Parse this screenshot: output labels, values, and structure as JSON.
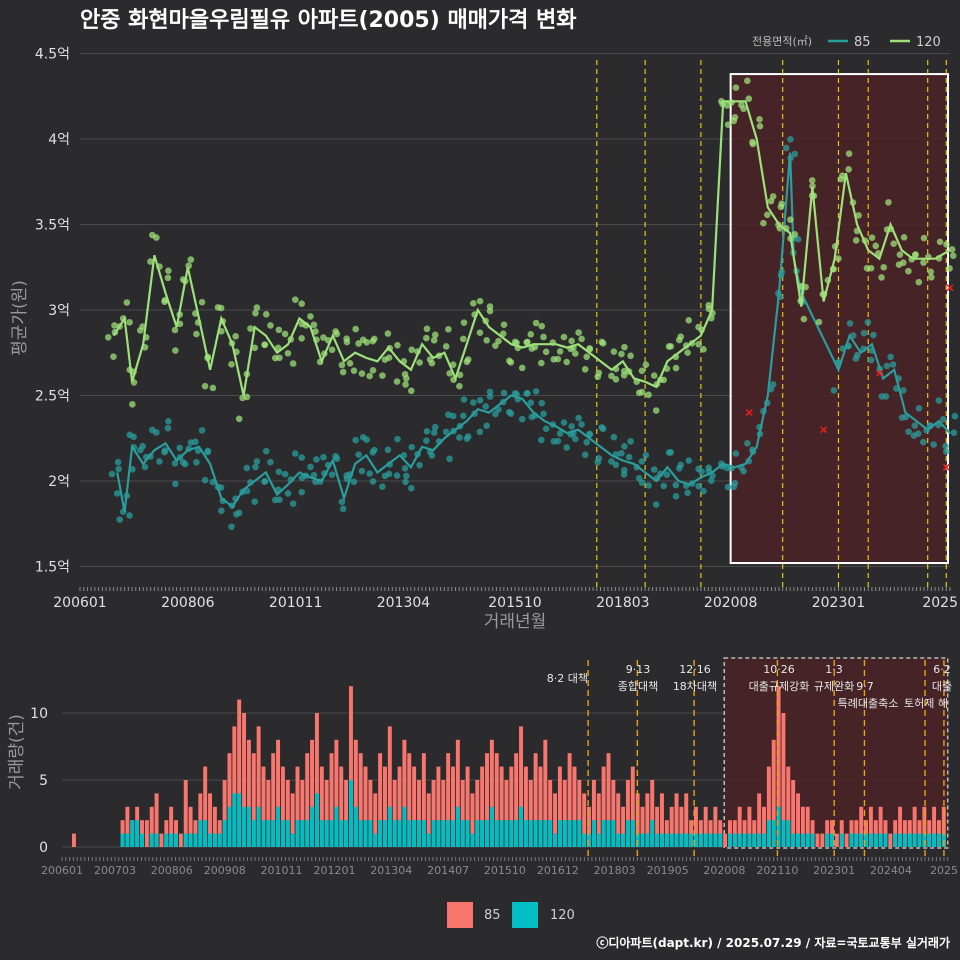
{
  "title": "안중 화현마을우림필유 아파트(2005) 매매가격 변화",
  "caption": "ⓒ디아파트(dapt.kr) / 2025.07.29 / 자료=국토교통부 실거래가",
  "colors": {
    "background": "#2b2b2d",
    "grid": "#4a4a4c",
    "series_85": "#2a9d9c",
    "series_120": "#9ee07a",
    "bar_85": "#f8766d",
    "bar_120": "#00bfc4",
    "policy_line": "#e8c31a",
    "highlight_fill": "#4a2226",
    "outlier": "#e02020"
  },
  "chart_data": [
    {
      "type": "line",
      "title": "안중 화현마을우림필유 아파트(2005) 매매가격 변화",
      "xlabel": "거래년월",
      "ylabel": "평균가(원)",
      "legend_title": "전용면적(㎡)",
      "legend_position": "top-right",
      "grid": true,
      "xlim": [
        "2006-01",
        "2025-07"
      ],
      "ylim": [
        1.45,
        4.55
      ],
      "x_ticks": [
        "200601",
        "200806",
        "201011",
        "201304",
        "201510",
        "201803",
        "202008",
        "202301",
        "2025"
      ],
      "y_ticks": [
        1.5,
        2,
        2.5,
        3,
        3.5,
        4,
        4.5
      ],
      "y_tick_labels": [
        "1.5억",
        "2억",
        "2.5억",
        "3억",
        "3.5억",
        "4억",
        "4.5억"
      ],
      "policy_dates": [
        "2017-08",
        "2018-09",
        "2019-12",
        "2021-10",
        "2023-01",
        "2023-09",
        "2025-01",
        "2025-06"
      ],
      "highlight": {
        "x_start": "2020-08",
        "x_end": "2025-07",
        "y_bottom": 1.52,
        "y_top": 4.38
      },
      "series": [
        {
          "name": "85",
          "x": [
            "2006-11",
            "2007-01",
            "2007-03",
            "2007-06",
            "2007-09",
            "2007-12",
            "2008-03",
            "2008-06",
            "2008-09",
            "2008-12",
            "2009-03",
            "2009-06",
            "2009-09",
            "2009-12",
            "2010-03",
            "2010-06",
            "2010-09",
            "2010-12",
            "2011-03",
            "2011-06",
            "2011-09",
            "2011-12",
            "2012-03",
            "2012-06",
            "2012-09",
            "2012-12",
            "2013-03",
            "2013-06",
            "2013-09",
            "2013-12",
            "2014-03",
            "2014-06",
            "2014-09",
            "2014-12",
            "2015-03",
            "2015-06",
            "2015-09",
            "2015-12",
            "2016-03",
            "2016-06",
            "2016-09",
            "2016-12",
            "2017-03",
            "2017-06",
            "2017-09",
            "2017-12",
            "2018-03",
            "2018-06",
            "2018-09",
            "2018-12",
            "2019-03",
            "2019-06",
            "2019-09",
            "2019-12",
            "2020-03",
            "2020-06",
            "2020-09",
            "2020-12",
            "2021-03",
            "2021-06",
            "2021-09",
            "2021-12",
            "2022-01",
            "2022-03",
            "2023-01",
            "2023-04",
            "2023-07",
            "2023-10",
            "2024-01",
            "2024-04",
            "2024-07",
            "2024-10",
            "2025-01",
            "2025-04",
            "2025-07"
          ],
          "values": [
            2.05,
            1.82,
            2.2,
            2.1,
            2.18,
            2.22,
            2.12,
            2.18,
            2.2,
            2.1,
            1.9,
            1.85,
            1.95,
            2.0,
            2.05,
            1.92,
            1.98,
            2.05,
            2.02,
            2.0,
            2.12,
            1.9,
            2.1,
            2.15,
            2.05,
            2.1,
            2.15,
            2.08,
            2.2,
            2.18,
            2.25,
            2.3,
            2.35,
            2.42,
            2.4,
            2.45,
            2.5,
            2.48,
            2.4,
            2.35,
            2.32,
            2.28,
            2.3,
            2.25,
            2.2,
            2.15,
            2.12,
            2.1,
            2.05,
            2.0,
            2.08,
            2.0,
            1.98,
            2.02,
            2.05,
            2.1,
            2.08,
            2.1,
            2.2,
            2.5,
            3.1,
            3.92,
            3.3,
            3.1,
            2.65,
            2.85,
            2.75,
            2.8,
            2.6,
            2.65,
            2.4,
            2.35,
            2.3,
            2.35,
            2.28
          ]
        },
        {
          "name": "120",
          "x": [
            "2006-10",
            "2007-01",
            "2007-03",
            "2007-06",
            "2007-09",
            "2007-12",
            "2008-03",
            "2008-06",
            "2008-09",
            "2008-12",
            "2009-03",
            "2009-06",
            "2009-09",
            "2009-12",
            "2010-03",
            "2010-06",
            "2010-09",
            "2010-12",
            "2011-03",
            "2011-06",
            "2011-09",
            "2011-12",
            "2012-03",
            "2012-06",
            "2012-09",
            "2012-12",
            "2013-03",
            "2013-06",
            "2013-09",
            "2013-12",
            "2014-03",
            "2014-06",
            "2014-09",
            "2014-12",
            "2015-03",
            "2015-06",
            "2015-09",
            "2015-12",
            "2016-03",
            "2016-06",
            "2016-09",
            "2016-12",
            "2017-03",
            "2017-06",
            "2017-09",
            "2017-12",
            "2018-03",
            "2018-06",
            "2018-09",
            "2018-12",
            "2019-03",
            "2019-06",
            "2019-09",
            "2019-12",
            "2020-03",
            "2020-06",
            "2020-09",
            "2020-12",
            "2021-03",
            "2021-06",
            "2021-09",
            "2021-12",
            "2022-03",
            "2022-06",
            "2022-09",
            "2022-12",
            "2023-03",
            "2023-06",
            "2023-09",
            "2023-12",
            "2024-03",
            "2024-06",
            "2024-09",
            "2024-12",
            "2025-03",
            "2025-07"
          ],
          "values": [
            2.85,
            2.95,
            2.58,
            2.8,
            3.32,
            3.1,
            2.9,
            3.25,
            2.95,
            2.65,
            2.95,
            2.8,
            2.5,
            2.9,
            2.85,
            2.75,
            2.8,
            2.95,
            2.9,
            2.7,
            2.85,
            2.7,
            2.75,
            2.72,
            2.7,
            2.78,
            2.7,
            2.65,
            2.8,
            2.72,
            2.75,
            2.6,
            2.8,
            3.0,
            2.9,
            2.85,
            2.8,
            2.78,
            2.8,
            2.8,
            2.8,
            2.78,
            2.8,
            2.75,
            2.7,
            2.65,
            2.7,
            2.6,
            2.58,
            2.55,
            2.7,
            2.75,
            2.8,
            2.85,
            3.0,
            4.22,
            4.22,
            4.22,
            4.0,
            3.6,
            3.5,
            3.45,
            3.02,
            3.72,
            3.05,
            3.3,
            3.8,
            3.5,
            3.35,
            3.3,
            3.5,
            3.35,
            3.3,
            3.3,
            3.3,
            3.35
          ]
        }
      ],
      "outliers": {
        "x": [
          "2021-01",
          "2022-09",
          "2023-12",
          "2025-06",
          "2025-07"
        ],
        "values": [
          2.4,
          2.3,
          2.63,
          2.08,
          3.13
        ]
      }
    },
    {
      "type": "bar",
      "ylabel": "거래량(건)",
      "grid": true,
      "ylim": [
        0,
        13
      ],
      "y_ticks": [
        0,
        5,
        10
      ],
      "x_ticks": [
        "200601",
        "200703",
        "200806",
        "200908",
        "201011",
        "201201",
        "201304",
        "201407",
        "201510",
        "201612",
        "201803",
        "201905",
        "202008",
        "202110",
        "202301",
        "202404",
        "2025"
      ],
      "legend_position": "bottom",
      "policies": [
        {
          "date": "2017-08",
          "label": "8·2 대책"
        },
        {
          "date": "2018-09",
          "label": "9·13 종합대책"
        },
        {
          "date": "2019-12",
          "label": "12·16 18차대책"
        },
        {
          "date": "2021-10",
          "label": "10·26 대출규제강화"
        },
        {
          "date": "2023-01",
          "label": "1·3 규제완화"
        },
        {
          "date": "2023-09",
          "label": "9·7 특례대출축소"
        },
        {
          "date": "2025-01",
          "label": "토허제 해"
        },
        {
          "date": "2025-06",
          "label": "6·2 대출"
        }
      ],
      "series": [
        {
          "name": "85",
          "values": [
            1,
            0,
            0,
            0,
            0,
            0,
            0,
            0,
            0,
            0,
            2,
            3,
            2,
            3,
            2,
            2,
            3,
            4,
            1,
            2,
            3,
            2,
            1,
            5,
            3,
            2,
            4,
            6,
            4,
            3,
            2,
            5,
            7,
            9,
            11,
            10,
            8,
            7,
            9,
            6,
            5,
            7,
            8,
            6,
            5,
            4,
            6,
            5,
            7,
            8,
            10,
            6,
            5,
            7,
            8,
            6,
            5,
            12,
            8,
            7,
            6,
            5,
            4,
            7,
            6,
            9,
            5,
            6,
            8,
            7,
            6,
            5,
            7,
            4,
            5,
            6,
            5,
            7,
            6,
            8,
            5,
            6,
            4,
            5,
            6,
            7,
            8,
            7,
            6,
            5,
            6,
            7,
            9,
            6,
            5,
            7,
            6,
            8,
            5,
            4,
            6,
            5,
            7,
            6,
            5,
            4,
            3,
            5,
            4,
            6,
            7,
            5,
            4,
            3,
            5,
            6,
            4,
            3,
            4,
            5,
            3,
            4,
            2,
            3,
            4,
            3,
            4,
            2,
            3,
            2,
            3,
            2,
            3,
            2,
            1,
            2,
            2,
            3,
            2,
            3,
            2,
            4,
            3,
            6,
            8,
            12,
            10,
            6,
            5,
            4,
            3,
            3,
            2,
            1,
            1,
            2,
            2,
            1,
            2,
            1,
            2,
            2,
            3,
            2,
            3,
            2,
            3,
            2,
            1,
            2,
            3,
            2,
            2,
            3,
            2,
            3,
            2,
            3,
            2,
            3
          ]
        },
        {
          "name": "120",
          "values": [
            0,
            0,
            0,
            0,
            0,
            0,
            0,
            0,
            0,
            0,
            1,
            1,
            2,
            2,
            1,
            0,
            1,
            1,
            0,
            1,
            1,
            1,
            0,
            1,
            1,
            1,
            2,
            2,
            1,
            1,
            1,
            2,
            3,
            4,
            4,
            3,
            3,
            2,
            3,
            2,
            2,
            2,
            3,
            2,
            2,
            1,
            2,
            2,
            2,
            3,
            4,
            2,
            2,
            2,
            3,
            2,
            2,
            5,
            3,
            2,
            2,
            2,
            1,
            2,
            2,
            3,
            2,
            2,
            3,
            2,
            2,
            2,
            2,
            1,
            2,
            2,
            2,
            2,
            2,
            3,
            2,
            2,
            1,
            2,
            2,
            2,
            3,
            2,
            2,
            2,
            2,
            2,
            3,
            2,
            2,
            2,
            2,
            2,
            2,
            1,
            2,
            2,
            2,
            2,
            2,
            1,
            1,
            2,
            1,
            2,
            2,
            2,
            1,
            1,
            2,
            2,
            1,
            1,
            1,
            2,
            1,
            1,
            1,
            1,
            1,
            1,
            1,
            1,
            1,
            1,
            1,
            1,
            1,
            1,
            0,
            1,
            1,
            1,
            1,
            1,
            1,
            1,
            1,
            2,
            2,
            3,
            2,
            2,
            1,
            1,
            1,
            1,
            1,
            0,
            0,
            1,
            1,
            0,
            1,
            0,
            1,
            1,
            1,
            1,
            1,
            1,
            1,
            1,
            0,
            1,
            1,
            1,
            1,
            1,
            1,
            1,
            1,
            1,
            1,
            1
          ]
        }
      ]
    }
  ]
}
